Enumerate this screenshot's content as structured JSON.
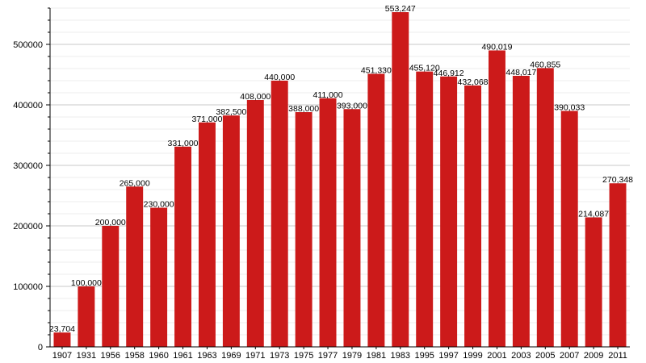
{
  "chart_data": {
    "type": "bar",
    "title": "",
    "xlabel": "",
    "ylabel": "",
    "ylim": [
      0,
      560000
    ],
    "y_ticks": [
      0,
      100000,
      200000,
      300000,
      400000,
      500000
    ],
    "y_tick_labels": [
      "0",
      "100000",
      "200000",
      "300000",
      "400000",
      "500000"
    ],
    "grid": true,
    "bar_color": "#cc1a1a",
    "categories": [
      "1907",
      "1931",
      "1956",
      "1958",
      "1960",
      "1961",
      "1963",
      "1969",
      "1971",
      "1973",
      "1975",
      "1977",
      "1979",
      "1981",
      "1983",
      "1995",
      "1997",
      "1999",
      "2001",
      "2003",
      "2005",
      "2007",
      "2009",
      "2011"
    ],
    "values": [
      23704,
      100000,
      200000,
      265000,
      230000,
      331000,
      371000,
      382500,
      408000,
      440000,
      388000,
      411000,
      393000,
      451330,
      553247,
      455120,
      446912,
      432068,
      490019,
      448017,
      460855,
      390033,
      214087,
      270348
    ],
    "value_labels": [
      "23,704",
      "100,000",
      "200,000",
      "265,000",
      "230,000",
      "331,000",
      "371,000",
      "382,500",
      "408,000",
      "440,000",
      "388,000",
      "411,000",
      "393,000",
      "451,330",
      "553,247",
      "455,120",
      "446,912",
      "432,068",
      "490,019",
      "448,017",
      "460,855",
      "390,033",
      "214,087",
      "270,348"
    ]
  }
}
